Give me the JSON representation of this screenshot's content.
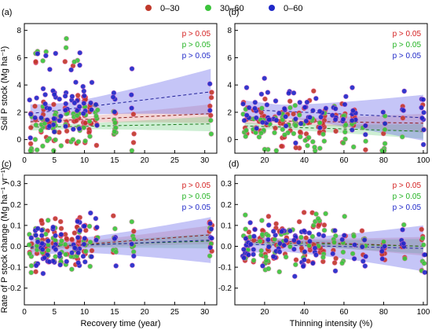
{
  "legend": {
    "items": [
      {
        "label": "0–30",
        "color": "#c0392b"
      },
      {
        "label": "30–60",
        "color": "#3cc43c"
      },
      {
        "label": "0–60",
        "color": "#1f28c8"
      }
    ]
  },
  "annotations": {
    "p_text": "p > 0.05"
  },
  "chart_data": [
    {
      "panel": "(a)",
      "type": "scatter",
      "ylabel": "Soil P stock (Mg ha⁻¹)",
      "xlabel": "",
      "xlim": [
        0,
        32
      ],
      "ylim": [
        -1,
        8.5
      ],
      "xticks": [
        0,
        5,
        10,
        15,
        20,
        25,
        30
      ],
      "yticks": [
        0,
        2,
        4,
        6,
        8
      ],
      "trend_lines": {
        "0-30": [
          [
            1,
            1.3
          ],
          [
            31,
            1.9
          ]
        ],
        "30-60": [
          [
            1,
            0.9
          ],
          [
            31,
            1.15
          ]
        ],
        "0-60": [
          [
            1,
            1.9
          ],
          [
            31,
            3.5
          ]
        ]
      },
      "p_values": [
        "p > 0.05",
        "p > 0.05",
        "p > 0.05"
      ]
    },
    {
      "panel": "(b)",
      "type": "scatter",
      "ylabel": "",
      "xlabel": "",
      "xlim": [
        5,
        102
      ],
      "ylim": [
        -1,
        8.5
      ],
      "xticks": [
        20,
        40,
        60,
        80,
        100
      ],
      "yticks": [
        0,
        2,
        4,
        6,
        8
      ],
      "trend_lines": {
        "0-30": [
          [
            10,
            1.4
          ],
          [
            100,
            1.2
          ]
        ],
        "30-60": [
          [
            10,
            1.0
          ],
          [
            100,
            0.6
          ]
        ],
        "0-60": [
          [
            10,
            2.2
          ],
          [
            100,
            1.6
          ]
        ]
      },
      "p_values": [
        "p > 0.05",
        "p > 0.05",
        "p > 0.05"
      ]
    },
    {
      "panel": "(c)",
      "type": "scatter",
      "ylabel": "Rate of P stock change (Mg ha⁻¹ yr⁻¹)",
      "xlabel": "Recovery time (year)",
      "xlim": [
        0,
        32
      ],
      "ylim": [
        -0.28,
        0.34
      ],
      "xticks": [
        0,
        5,
        10,
        15,
        20,
        25,
        30
      ],
      "yticks": [
        -0.2,
        -0.1,
        0.0,
        0.1,
        0.2,
        0.3
      ],
      "trend_lines": {
        "0-30": [
          [
            1,
            -0.01
          ],
          [
            31,
            0.055
          ]
        ],
        "30-60": [
          [
            1,
            0.0
          ],
          [
            31,
            0.025
          ]
        ],
        "0-60": [
          [
            1,
            -0.005
          ],
          [
            31,
            0.03
          ]
        ]
      },
      "p_values": [
        "p > 0.05",
        "p > 0.05",
        "p > 0.05"
      ]
    },
    {
      "panel": "(d)",
      "type": "scatter",
      "ylabel": "",
      "xlabel": "Thinning intensity (%)",
      "xlim": [
        5,
        102
      ],
      "ylim": [
        -0.28,
        0.34
      ],
      "xticks": [
        20,
        40,
        60,
        80,
        100
      ],
      "yticks": [
        -0.2,
        -0.1,
        0.0,
        0.1,
        0.2,
        0.3
      ],
      "trend_lines": {
        "0-30": [
          [
            10,
            0.03
          ],
          [
            100,
            0.0
          ]
        ],
        "30-60": [
          [
            10,
            0.02
          ],
          [
            100,
            0.0
          ]
        ],
        "0-60": [
          [
            10,
            0.01
          ],
          [
            100,
            -0.01
          ]
        ]
      },
      "p_values": [
        "p > 0.05",
        "p > 0.05",
        "p > 0.05"
      ]
    }
  ]
}
